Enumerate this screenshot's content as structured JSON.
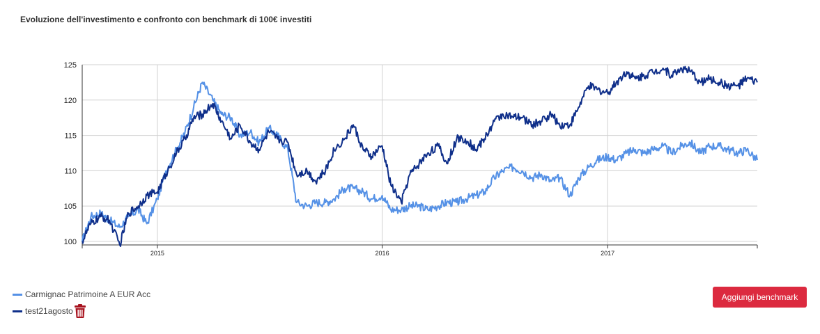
{
  "header": {
    "title": "Evoluzione dell'investimento e confronto con benchmark di 100€ investiti"
  },
  "actions": {
    "add_benchmark_label": "Aggiungi benchmark"
  },
  "legend": {
    "items": [
      {
        "label": "Carmignac Patrimoine A EUR Acc",
        "color": "#5591e6",
        "removable": false
      },
      {
        "label": "test21agosto",
        "color": "#0f2f8a",
        "removable": true
      }
    ],
    "remove_icon": "trash-icon",
    "remove_color": "#a8131f"
  },
  "chart_data": {
    "type": "line",
    "x_type": "date",
    "ylim": [
      99.5,
      125
    ],
    "xlim": [
      "2014-09-01",
      "2017-09-01"
    ],
    "y_ticks": [
      100,
      105,
      110,
      115,
      120,
      125
    ],
    "x_ticks": [
      {
        "label": "2015",
        "date": "2015-01-01"
      },
      {
        "label": "2016",
        "date": "2016-01-01"
      },
      {
        "label": "2017",
        "date": "2017-01-01"
      }
    ],
    "grid": true,
    "legend_position": "bottom-left",
    "series": [
      {
        "name": "Carmignac Patrimoine A EUR Acc",
        "color": "#5591e6",
        "x": [
          "2014-09-01",
          "2014-09-15",
          "2014-10-01",
          "2014-10-15",
          "2014-11-01",
          "2014-11-15",
          "2014-12-01",
          "2014-12-15",
          "2015-01-01",
          "2015-01-15",
          "2015-02-01",
          "2015-02-15",
          "2015-03-01",
          "2015-03-15",
          "2015-04-01",
          "2015-04-15",
          "2015-05-01",
          "2015-05-15",
          "2015-06-01",
          "2015-06-15",
          "2015-07-01",
          "2015-07-15",
          "2015-08-01",
          "2015-08-15",
          "2015-09-01",
          "2015-09-15",
          "2015-10-01",
          "2015-10-15",
          "2015-11-01",
          "2015-11-15",
          "2015-12-01",
          "2015-12-15",
          "2016-01-01",
          "2016-01-15",
          "2016-02-01",
          "2016-02-15",
          "2016-03-01",
          "2016-03-15",
          "2016-04-01",
          "2016-04-15",
          "2016-05-01",
          "2016-05-15",
          "2016-06-01",
          "2016-06-15",
          "2016-07-01",
          "2016-07-15",
          "2016-08-01",
          "2016-08-15",
          "2016-09-01",
          "2016-09-15",
          "2016-10-01",
          "2016-10-15",
          "2016-11-01",
          "2016-11-15",
          "2016-12-01",
          "2016-12-15",
          "2017-01-01",
          "2017-01-15",
          "2017-02-01",
          "2017-02-15",
          "2017-03-01",
          "2017-03-15",
          "2017-04-01",
          "2017-04-15",
          "2017-05-01",
          "2017-05-15",
          "2017-06-01",
          "2017-06-15",
          "2017-07-01",
          "2017-07-15",
          "2017-08-01",
          "2017-08-15",
          "2017-09-01"
        ],
        "values": [
          100.0,
          103.5,
          104.0,
          103.0,
          102.0,
          103.5,
          104.5,
          102.5,
          106.0,
          110.0,
          113.0,
          115.5,
          119.0,
          122.5,
          120.0,
          118.0,
          117.5,
          115.0,
          115.5,
          114.0,
          116.0,
          115.0,
          113.0,
          105.5,
          105.0,
          105.5,
          105.5,
          106.0,
          107.5,
          107.5,
          107.0,
          106.0,
          106.5,
          104.5,
          104.5,
          105.0,
          105.0,
          104.5,
          105.0,
          105.5,
          105.5,
          106.0,
          106.5,
          107.0,
          109.0,
          110.0,
          110.5,
          110.0,
          109.0,
          109.5,
          108.5,
          109.0,
          106.5,
          109.0,
          110.5,
          111.5,
          112.0,
          111.5,
          112.5,
          113.0,
          112.5,
          113.0,
          113.5,
          112.5,
          113.5,
          114.0,
          112.5,
          113.5,
          113.5,
          113.0,
          112.5,
          113.0,
          111.5
        ]
      },
      {
        "name": "test21agosto",
        "color": "#0f2f8a",
        "x": [
          "2014-09-01",
          "2014-09-15",
          "2014-10-01",
          "2014-10-15",
          "2014-11-01",
          "2014-11-15",
          "2014-12-01",
          "2014-12-15",
          "2015-01-01",
          "2015-01-15",
          "2015-02-01",
          "2015-02-15",
          "2015-03-01",
          "2015-03-15",
          "2015-04-01",
          "2015-04-15",
          "2015-05-01",
          "2015-05-15",
          "2015-06-01",
          "2015-06-15",
          "2015-07-01",
          "2015-07-15",
          "2015-08-01",
          "2015-08-15",
          "2015-09-01",
          "2015-09-15",
          "2015-10-01",
          "2015-10-15",
          "2015-11-01",
          "2015-11-15",
          "2015-12-01",
          "2015-12-15",
          "2016-01-01",
          "2016-01-15",
          "2016-02-01",
          "2016-02-15",
          "2016-03-01",
          "2016-03-15",
          "2016-04-01",
          "2016-04-15",
          "2016-05-01",
          "2016-05-15",
          "2016-06-01",
          "2016-06-15",
          "2016-07-01",
          "2016-07-15",
          "2016-08-01",
          "2016-08-15",
          "2016-09-01",
          "2016-09-15",
          "2016-10-01",
          "2016-10-15",
          "2016-11-01",
          "2016-11-15",
          "2016-12-01",
          "2016-12-15",
          "2017-01-01",
          "2017-01-15",
          "2017-02-01",
          "2017-02-15",
          "2017-03-01",
          "2017-03-15",
          "2017-04-01",
          "2017-04-15",
          "2017-05-01",
          "2017-05-15",
          "2017-06-01",
          "2017-06-15",
          "2017-07-01",
          "2017-07-15",
          "2017-08-01",
          "2017-08-15",
          "2017-09-01"
        ],
        "values": [
          100.0,
          102.5,
          103.5,
          103.0,
          99.5,
          104.0,
          105.0,
          106.5,
          107.0,
          109.5,
          112.5,
          114.5,
          117.5,
          118.0,
          119.5,
          117.0,
          114.5,
          116.5,
          114.0,
          113.0,
          115.5,
          114.5,
          114.0,
          109.5,
          110.0,
          108.5,
          110.0,
          113.0,
          114.5,
          116.5,
          113.0,
          112.0,
          113.5,
          108.0,
          105.5,
          109.5,
          111.0,
          112.5,
          113.5,
          111.0,
          114.5,
          114.5,
          113.0,
          114.5,
          117.0,
          118.0,
          117.5,
          117.5,
          116.5,
          117.0,
          118.0,
          116.5,
          116.5,
          119.0,
          122.0,
          121.5,
          121.0,
          122.5,
          124.0,
          123.0,
          123.5,
          124.0,
          124.5,
          123.5,
          124.5,
          124.0,
          122.5,
          123.0,
          122.5,
          122.0,
          122.0,
          123.0,
          122.5
        ]
      }
    ]
  }
}
